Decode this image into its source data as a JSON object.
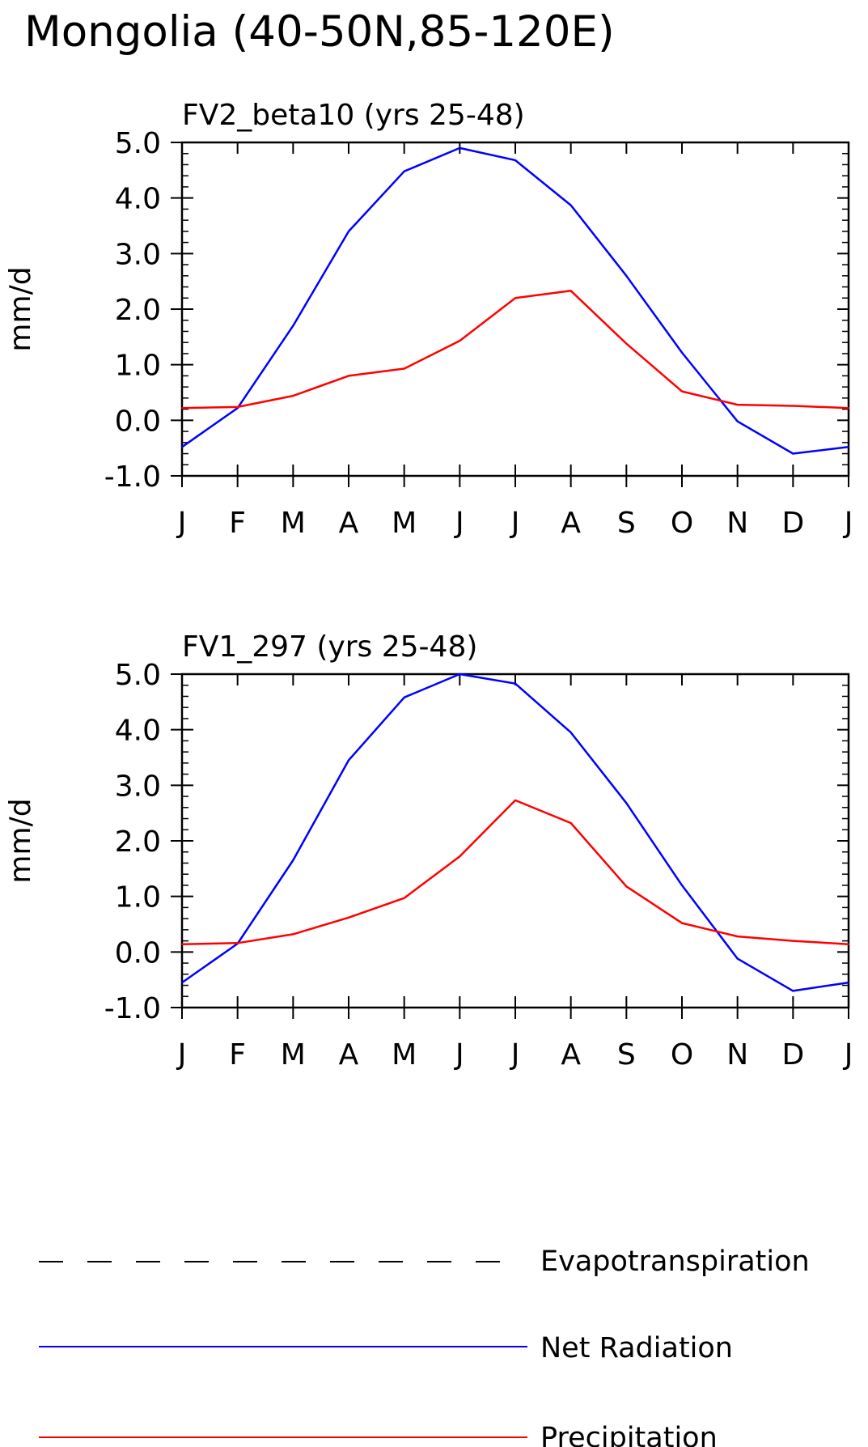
{
  "figure_title": "Mongolia (40-50N,85-120E)",
  "colors": {
    "frame": "#000000",
    "series": {
      "Evapotranspiration": "#000000",
      "Net Radiation": "#0000ff",
      "Precipitation": "#ff0000"
    }
  },
  "legend": {
    "placement": "bottom",
    "items": [
      {
        "label": "Evapotranspiration",
        "style": "dashed",
        "color": "#000000"
      },
      {
        "label": "Net Radiation",
        "style": "solid",
        "color": "#0000ff"
      },
      {
        "label": "Precipitation",
        "style": "solid",
        "color": "#ff0000"
      }
    ]
  },
  "chart_data": [
    {
      "type": "line",
      "title": "FV2_beta10 (yrs 25-48)",
      "xlabel": "",
      "ylabel": "mm/d",
      "categories": [
        "J",
        "F",
        "M",
        "A",
        "M",
        "J",
        "J",
        "A",
        "S",
        "O",
        "N",
        "D",
        "J"
      ],
      "ylim": [
        -1.0,
        5.0
      ],
      "yticks": [
        -1.0,
        0.0,
        1.0,
        2.0,
        3.0,
        4.0,
        5.0
      ],
      "ytick_labels": [
        "-1.0",
        "0.0",
        "1.0",
        "2.0",
        "3.0",
        "4.0",
        "5.0"
      ],
      "grid": false,
      "series": [
        {
          "name": "Net Radiation",
          "values": [
            -0.48,
            0.22,
            1.7,
            3.4,
            4.48,
            4.9,
            4.68,
            3.87,
            2.6,
            1.22,
            -0.02,
            -0.6,
            -0.48
          ]
        },
        {
          "name": "Precipitation",
          "values": [
            0.22,
            0.24,
            0.44,
            0.8,
            0.93,
            1.43,
            2.2,
            2.33,
            1.38,
            0.52,
            0.28,
            0.26,
            0.22
          ]
        }
      ]
    },
    {
      "type": "line",
      "title": "FV1_297 (yrs 25-48)",
      "xlabel": "",
      "ylabel": "mm/d",
      "categories": [
        "J",
        "F",
        "M",
        "A",
        "M",
        "J",
        "J",
        "A",
        "S",
        "O",
        "N",
        "D",
        "J"
      ],
      "ylim": [
        -1.0,
        5.0
      ],
      "yticks": [
        -1.0,
        0.0,
        1.0,
        2.0,
        3.0,
        4.0,
        5.0
      ],
      "ytick_labels": [
        "-1.0",
        "0.0",
        "1.0",
        "2.0",
        "3.0",
        "4.0",
        "5.0"
      ],
      "grid": false,
      "series": [
        {
          "name": "Net Radiation",
          "values": [
            -0.55,
            0.15,
            1.65,
            3.45,
            4.58,
            5.0,
            4.83,
            3.95,
            2.68,
            1.2,
            -0.12,
            -0.7,
            -0.55
          ]
        },
        {
          "name": "Precipitation",
          "values": [
            0.14,
            0.16,
            0.32,
            0.62,
            0.97,
            1.72,
            2.73,
            2.32,
            1.18,
            0.52,
            0.28,
            0.2,
            0.14
          ]
        }
      ]
    }
  ]
}
